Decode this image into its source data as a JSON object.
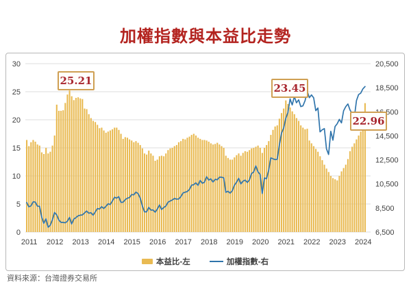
{
  "page": {
    "title": "加權指數與本益比走勢",
    "source_note": "資料來源：台灣證券交易所"
  },
  "colors": {
    "title_red": "#b3231f",
    "annotation_red": "#a8262e",
    "annotation_border": "#cf9f52",
    "bar_amber": "#e9ba52",
    "line_blue": "#2f74ab",
    "grid_gray": "#dcdcdc",
    "axis_text": "#3f3f3f",
    "panel_border": "#b7b7b7"
  },
  "chart_data": {
    "type": "combo",
    "grid": "horizontal-only",
    "legend_position": "bottom",
    "x": {
      "start": "2011-01",
      "interval": "month",
      "tick_labels": [
        "2011",
        "2012",
        "2013",
        "2014",
        "2015",
        "2016",
        "2017",
        "2018",
        "2019",
        "2020",
        "2021",
        "2022",
        "2023",
        "2024"
      ]
    },
    "left_axis": {
      "min": 0,
      "max": 30,
      "ticks": [
        30,
        25,
        20,
        15,
        10,
        5,
        0
      ]
    },
    "right_axis": {
      "min": 6500,
      "max": 20500,
      "ticks": [
        "20,500",
        "18,500",
        "16,500",
        "14,500",
        "12,500",
        "10,500",
        "8,500",
        "6,500"
      ]
    },
    "series": [
      {
        "name": "本益比-左",
        "type": "bar",
        "axis": "left",
        "color": "#e9ba52",
        "values": [
          16.4,
          15.3,
          16.0,
          16.4,
          16.1,
          15.6,
          15.4,
          14.2,
          13.9,
          15.0,
          14.0,
          14.3,
          15.4,
          17.2,
          22.7,
          21.6,
          21.6,
          21.7,
          23.0,
          24.5,
          25.21,
          24.2,
          23.5,
          23.9,
          24.0,
          23.8,
          23.7,
          22.0,
          21.9,
          21.0,
          20.3,
          19.8,
          19.6,
          19.1,
          18.5,
          18.6,
          18.1,
          17.7,
          17.9,
          18.1,
          18.3,
          18.6,
          18.6,
          18.2,
          17.5,
          16.6,
          16.9,
          16.8,
          16.5,
          16.3,
          16.0,
          16.2,
          15.9,
          15.5,
          14.9,
          14.0,
          13.8,
          14.5,
          14.0,
          13.6,
          12.7,
          12.9,
          13.5,
          13.6,
          13.5,
          14.0,
          14.6,
          14.9,
          15.0,
          15.3,
          15.5,
          16.0,
          16.2,
          16.6,
          16.5,
          16.8,
          17.0,
          17.3,
          17.5,
          17.2,
          16.8,
          16.6,
          16.4,
          16.4,
          16.3,
          16.1,
          15.8,
          15.6,
          15.7,
          15.9,
          15.6,
          15.3,
          15.0,
          13.6,
          13.2,
          12.9,
          12.9,
          13.3,
          13.7,
          14.0,
          13.6,
          14.1,
          14.4,
          14.3,
          14.6,
          14.9,
          15.0,
          15.2,
          15.4,
          15.0,
          14.1,
          15.0,
          15.5,
          16.2,
          17.3,
          18.2,
          18.8,
          19.0,
          20.2,
          21.2,
          22.0,
          23.45,
          22.8,
          22.2,
          21.5,
          21.0,
          20.3,
          19.8,
          19.0,
          18.6,
          18.3,
          18.4,
          16.3,
          15.8,
          15.3,
          14.8,
          14.3,
          13.5,
          12.8,
          12.0,
          11.3,
          10.7,
          10.0,
          9.6,
          9.4,
          9.2,
          10.0,
          10.8,
          11.4,
          12.0,
          13.0,
          14.4,
          15.2,
          15.8,
          16.5,
          17.2,
          17.9,
          19.5,
          22.96
        ]
      },
      {
        "name": "加權指數-右",
        "type": "line",
        "axis": "right",
        "color": "#2f74ab",
        "values": [
          8950,
          8600,
          8680,
          9010,
          8990,
          8650,
          8640,
          7740,
          7230,
          7590,
          6900,
          7070,
          7520,
          8120,
          7930,
          7500,
          7300,
          7300,
          7270,
          7400,
          7720,
          7170,
          7580,
          7700,
          7850,
          7900,
          7920,
          8090,
          8250,
          8060,
          8110,
          7900,
          8170,
          8450,
          8410,
          8610,
          8460,
          8640,
          8850,
          8790,
          9080,
          9390,
          9320,
          9440,
          8970,
          8980,
          9190,
          9310,
          9360,
          9620,
          9590,
          9820,
          9700,
          9320,
          8670,
          8180,
          8180,
          8550,
          8320,
          8340,
          8150,
          8410,
          8750,
          8380,
          8540,
          8670,
          8980,
          9070,
          9170,
          9290,
          9240,
          9250,
          9450,
          9750,
          9810,
          9870,
          10040,
          10400,
          10430,
          10590,
          10380,
          10790,
          10560,
          10640,
          11100,
          10820,
          10920,
          10660,
          10880,
          10840,
          11060,
          11060,
          11010,
          9800,
          9890,
          9730,
          9930,
          10390,
          10640,
          10970,
          10500,
          10730,
          10820,
          10620,
          10830,
          11360,
          11490,
          12000,
          11500,
          11290,
          9710,
          10990,
          10940,
          11620,
          12670,
          12590,
          12520,
          12550,
          13720,
          14730,
          15140,
          15950,
          16430,
          17570,
          17070,
          17760,
          17250,
          17490,
          16930,
          16990,
          17430,
          18220,
          17670,
          17900,
          17660,
          16590,
          16810,
          14830,
          15000,
          15100,
          13420,
          12950,
          14880,
          14140,
          15270,
          15500,
          15870,
          15580,
          16580,
          16920,
          17150,
          16640,
          16350,
          16000,
          17430,
          17930,
          18050,
          18400,
          18600
        ]
      }
    ],
    "annotations": [
      {
        "label": "25.21",
        "series": "本益比-左",
        "month": "2012-09"
      },
      {
        "label": "23.45",
        "series": "本益比-左",
        "month": "2021-02"
      },
      {
        "label": "22.96",
        "series": "本益比-左",
        "month": "2024-03"
      }
    ]
  }
}
